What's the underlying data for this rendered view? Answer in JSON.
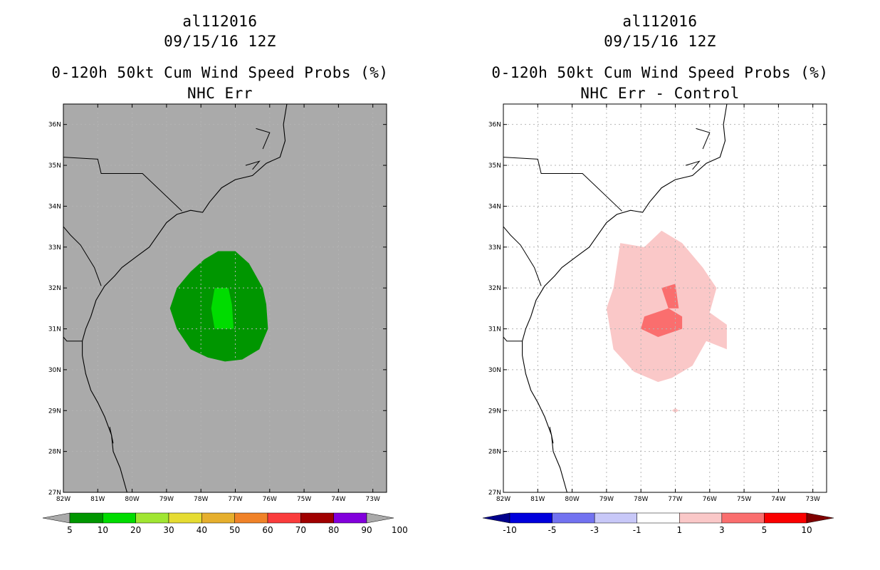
{
  "panels": [
    {
      "id": "left",
      "storm_id": "al112016",
      "datetime": "09/15/16 12Z",
      "product": "0-120h 50kt Cum Wind Speed Probs (%)",
      "subtitle": "NHC Err",
      "background_color": "#aaaaaa",
      "colorbar": {
        "labels": [
          "5",
          "10",
          "20",
          "30",
          "40",
          "50",
          "60",
          "70",
          "80",
          "90",
          "100"
        ],
        "colors": [
          "#009600",
          "#00dc00",
          "#a0e632",
          "#e6dc32",
          "#e6af2d",
          "#f08228",
          "#fa3c3c",
          "#a00000",
          "#8200dc"
        ],
        "end_low_color": "#aaaaaa",
        "end_high_color": "#aaaaaa"
      },
      "contours": [
        {
          "level": "5-10",
          "color": "#009600",
          "points_lonlat": [
            [
              -77.5,
              32.9
            ],
            [
              -77.0,
              32.9
            ],
            [
              -76.6,
              32.6
            ],
            [
              -76.2,
              32.0
            ],
            [
              -76.1,
              31.6
            ],
            [
              -76.05,
              31.0
            ],
            [
              -76.3,
              30.5
            ],
            [
              -76.8,
              30.25
            ],
            [
              -77.3,
              30.2
            ],
            [
              -77.8,
              30.3
            ],
            [
              -78.3,
              30.5
            ],
            [
              -78.7,
              31.0
            ],
            [
              -78.9,
              31.5
            ],
            [
              -78.7,
              32.0
            ],
            [
              -78.3,
              32.4
            ],
            [
              -77.9,
              32.7
            ]
          ]
        },
        {
          "level": "10-20",
          "color": "#00dc00",
          "points_lonlat": [
            [
              -77.6,
              32.0
            ],
            [
              -77.2,
              32.0
            ],
            [
              -77.1,
              31.6
            ],
            [
              -77.05,
              31.0
            ],
            [
              -77.4,
              31.0
            ],
            [
              -77.6,
              31.0
            ],
            [
              -77.7,
              31.5
            ]
          ]
        }
      ]
    },
    {
      "id": "right",
      "storm_id": "al112016",
      "datetime": "09/15/16 12Z",
      "product": "0-120h 50kt Cum Wind Speed Probs (%)",
      "subtitle": "NHC Err - Control",
      "background_color": "#ffffff",
      "colorbar": {
        "labels": [
          "-10",
          "-5",
          "-3",
          "-1",
          "1",
          "3",
          "5",
          "10"
        ],
        "colors": [
          "#0000dc",
          "#7272f0",
          "#c8c8f8",
          "#ffffff",
          "#fac8c8",
          "#fa6e6e",
          "#fa0000"
        ],
        "end_low_color": "#00008c",
        "end_high_color": "#800000"
      },
      "contours": [
        {
          "level": "1-3",
          "color": "#fac8c8",
          "points_lonlat": [
            [
              -78.6,
              33.1
            ],
            [
              -77.9,
              33.0
            ],
            [
              -77.4,
              33.4
            ],
            [
              -76.8,
              33.1
            ],
            [
              -76.2,
              32.5
            ],
            [
              -75.8,
              32.0
            ],
            [
              -76.0,
              31.4
            ],
            [
              -75.5,
              31.1
            ],
            [
              -75.5,
              30.5
            ],
            [
              -76.1,
              30.7
            ],
            [
              -76.5,
              30.1
            ],
            [
              -77.1,
              29.8
            ],
            [
              -77.5,
              29.7
            ],
            [
              -78.2,
              29.95
            ],
            [
              -78.8,
              30.5
            ],
            [
              -79.0,
              31.5
            ],
            [
              -78.8,
              32.0
            ]
          ]
        },
        {
          "level": "1-3 spot",
          "color": "#fac8c8",
          "points_lonlat": [
            [
              -77.1,
              29.0
            ],
            [
              -77.0,
              29.06
            ],
            [
              -76.9,
              29.0
            ],
            [
              -77.0,
              28.95
            ]
          ]
        },
        {
          "level": "3-5",
          "color": "#fa6e6e",
          "points_lonlat": [
            [
              -77.4,
              32.0
            ],
            [
              -77.0,
              32.1
            ],
            [
              -76.9,
              31.5
            ],
            [
              -77.2,
              31.5
            ],
            [
              -76.8,
              31.3
            ],
            [
              -76.8,
              31.0
            ],
            [
              -77.5,
              30.8
            ],
            [
              -78.0,
              31.0
            ],
            [
              -77.9,
              31.3
            ],
            [
              -77.2,
              31.5
            ]
          ]
        }
      ]
    }
  ],
  "map": {
    "lon_labels": [
      "82W",
      "81W",
      "80W",
      "79W",
      "78W",
      "77W",
      "76W",
      "75W",
      "74W",
      "73W"
    ],
    "lat_labels": [
      "27N",
      "28N",
      "29N",
      "30N",
      "31N",
      "32N",
      "33N",
      "34N",
      "35N",
      "36N"
    ],
    "coastline_lonlat": [
      [
        -75.5,
        36.5
      ],
      [
        -75.6,
        36.0
      ],
      [
        -75.55,
        35.6
      ],
      [
        -75.7,
        35.2
      ],
      [
        -76.1,
        35.05
      ],
      [
        -76.5,
        34.75
      ],
      [
        -77.0,
        34.65
      ],
      [
        -77.4,
        34.45
      ],
      [
        -77.75,
        34.1
      ],
      [
        -77.95,
        33.85
      ],
      [
        -78.3,
        33.9
      ],
      [
        -78.7,
        33.8
      ],
      [
        -79.0,
        33.6
      ],
      [
        -79.25,
        33.3
      ],
      [
        -79.5,
        33.0
      ],
      [
        -79.9,
        32.75
      ],
      [
        -80.3,
        32.5
      ],
      [
        -80.5,
        32.3
      ],
      [
        -80.8,
        32.05
      ],
      [
        -81.05,
        31.7
      ],
      [
        -81.2,
        31.3
      ],
      [
        -81.35,
        31.0
      ],
      [
        -81.45,
        30.7
      ],
      [
        -81.45,
        30.35
      ],
      [
        -81.35,
        29.9
      ],
      [
        -81.2,
        29.5
      ],
      [
        -81.0,
        29.2
      ],
      [
        -80.8,
        28.85
      ],
      [
        -80.6,
        28.4
      ],
      [
        -80.55,
        28.0
      ],
      [
        -80.35,
        27.6
      ],
      [
        -80.15,
        27.0
      ]
    ],
    "borders_lonlat": [
      [
        [
          -82.0,
          35.2
        ],
        [
          -81.0,
          35.15
        ],
        [
          -80.9,
          34.8
        ],
        [
          -79.7,
          34.8
        ],
        [
          -78.55,
          33.88
        ]
      ],
      [
        [
          -82.0,
          33.5
        ],
        [
          -81.8,
          33.3
        ],
        [
          -81.5,
          33.05
        ],
        [
          -81.1,
          32.5
        ],
        [
          -80.9,
          32.05
        ]
      ],
      [
        [
          -82.0,
          30.8
        ],
        [
          -81.9,
          30.7
        ],
        [
          -81.45,
          30.7
        ]
      ]
    ]
  }
}
